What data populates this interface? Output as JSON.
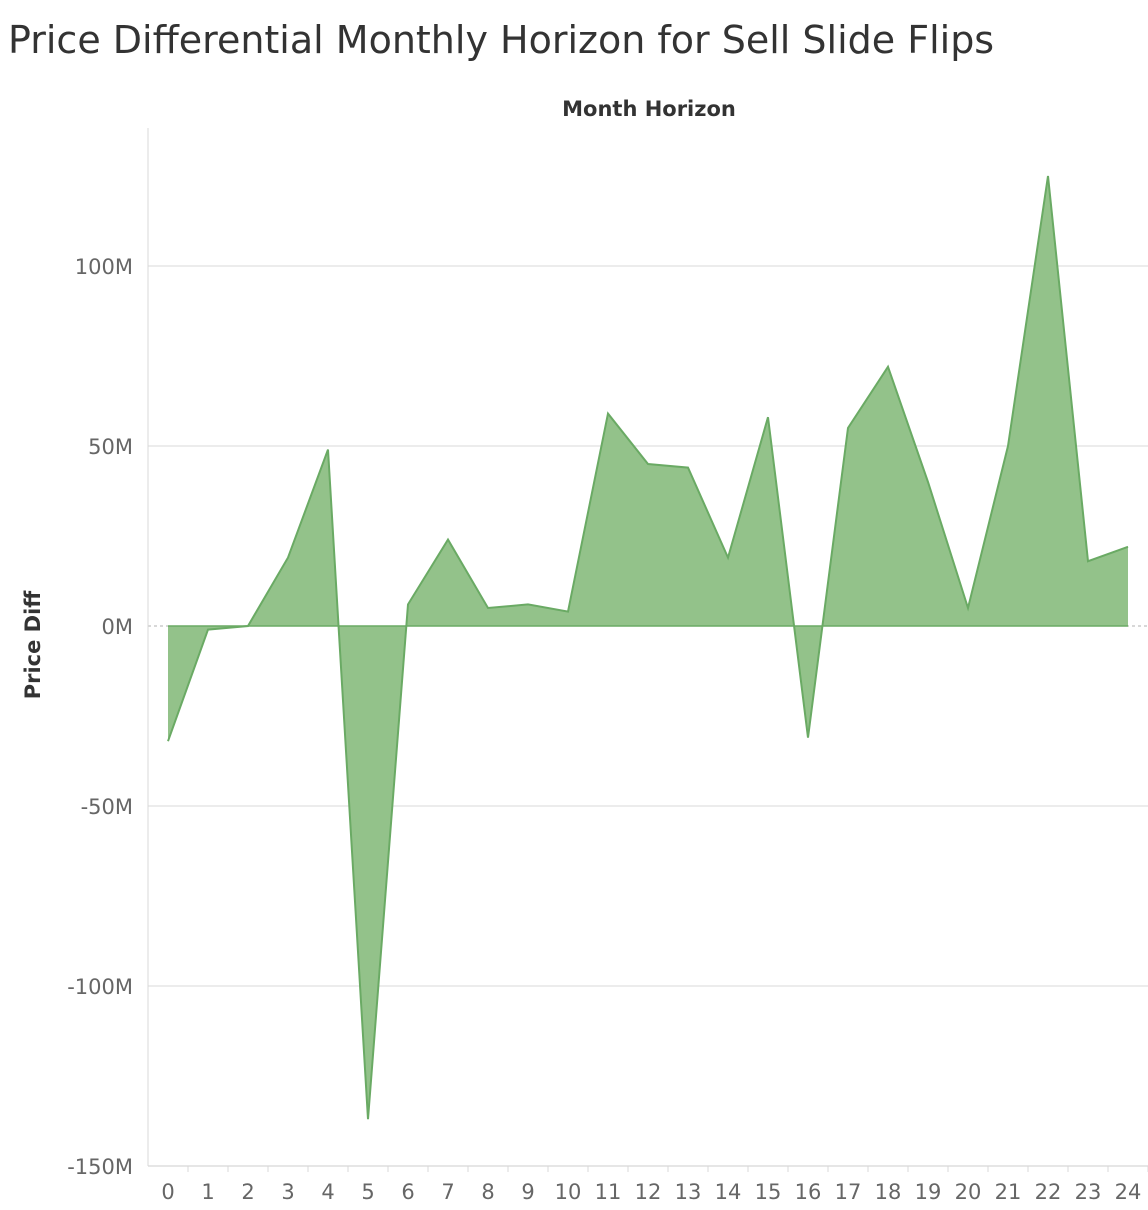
{
  "title": "Price Differential Monthly Horizon for Sell Slide Flips",
  "colors": {
    "area_fill": "#93c28a",
    "area_stroke": "#6aaa64",
    "gridline": "#e6e6e6",
    "zero_line": "#b0b0b0",
    "axis_line": "#d9d9d9"
  },
  "chart_data": {
    "type": "area",
    "title": "Price Differential Monthly Horizon for Sell Slide Flips",
    "xlabel": "Month Horizon",
    "ylabel": "Price Diff",
    "x": [
      0,
      1,
      2,
      3,
      4,
      5,
      6,
      7,
      8,
      9,
      10,
      11,
      12,
      13,
      14,
      15,
      16,
      17,
      18,
      19,
      20,
      21,
      22,
      23,
      24
    ],
    "series": [
      {
        "values": [
          -32,
          -1,
          0,
          19,
          49,
          -137,
          6,
          24,
          5,
          6,
          4,
          59,
          45,
          44,
          19,
          58,
          -31,
          55,
          72,
          40,
          5,
          50,
          125,
          18,
          22
        ]
      }
    ],
    "x_tick_labels": [
      "0",
      "1",
      "2",
      "3",
      "4",
      "5",
      "6",
      "7",
      "8",
      "9",
      "10",
      "11",
      "12",
      "13",
      "14",
      "15",
      "16",
      "17",
      "18",
      "19",
      "20",
      "21",
      "22",
      "23",
      "24"
    ],
    "y_ticks": [
      100,
      50,
      0,
      -50,
      -100,
      -150
    ],
    "y_tick_labels": [
      "100M",
      "50M",
      "0M",
      "-50M",
      "-100M",
      "-150M"
    ],
    "y_unit": "M",
    "ylim": [
      -150,
      125
    ],
    "grid": true,
    "legend": "none"
  }
}
